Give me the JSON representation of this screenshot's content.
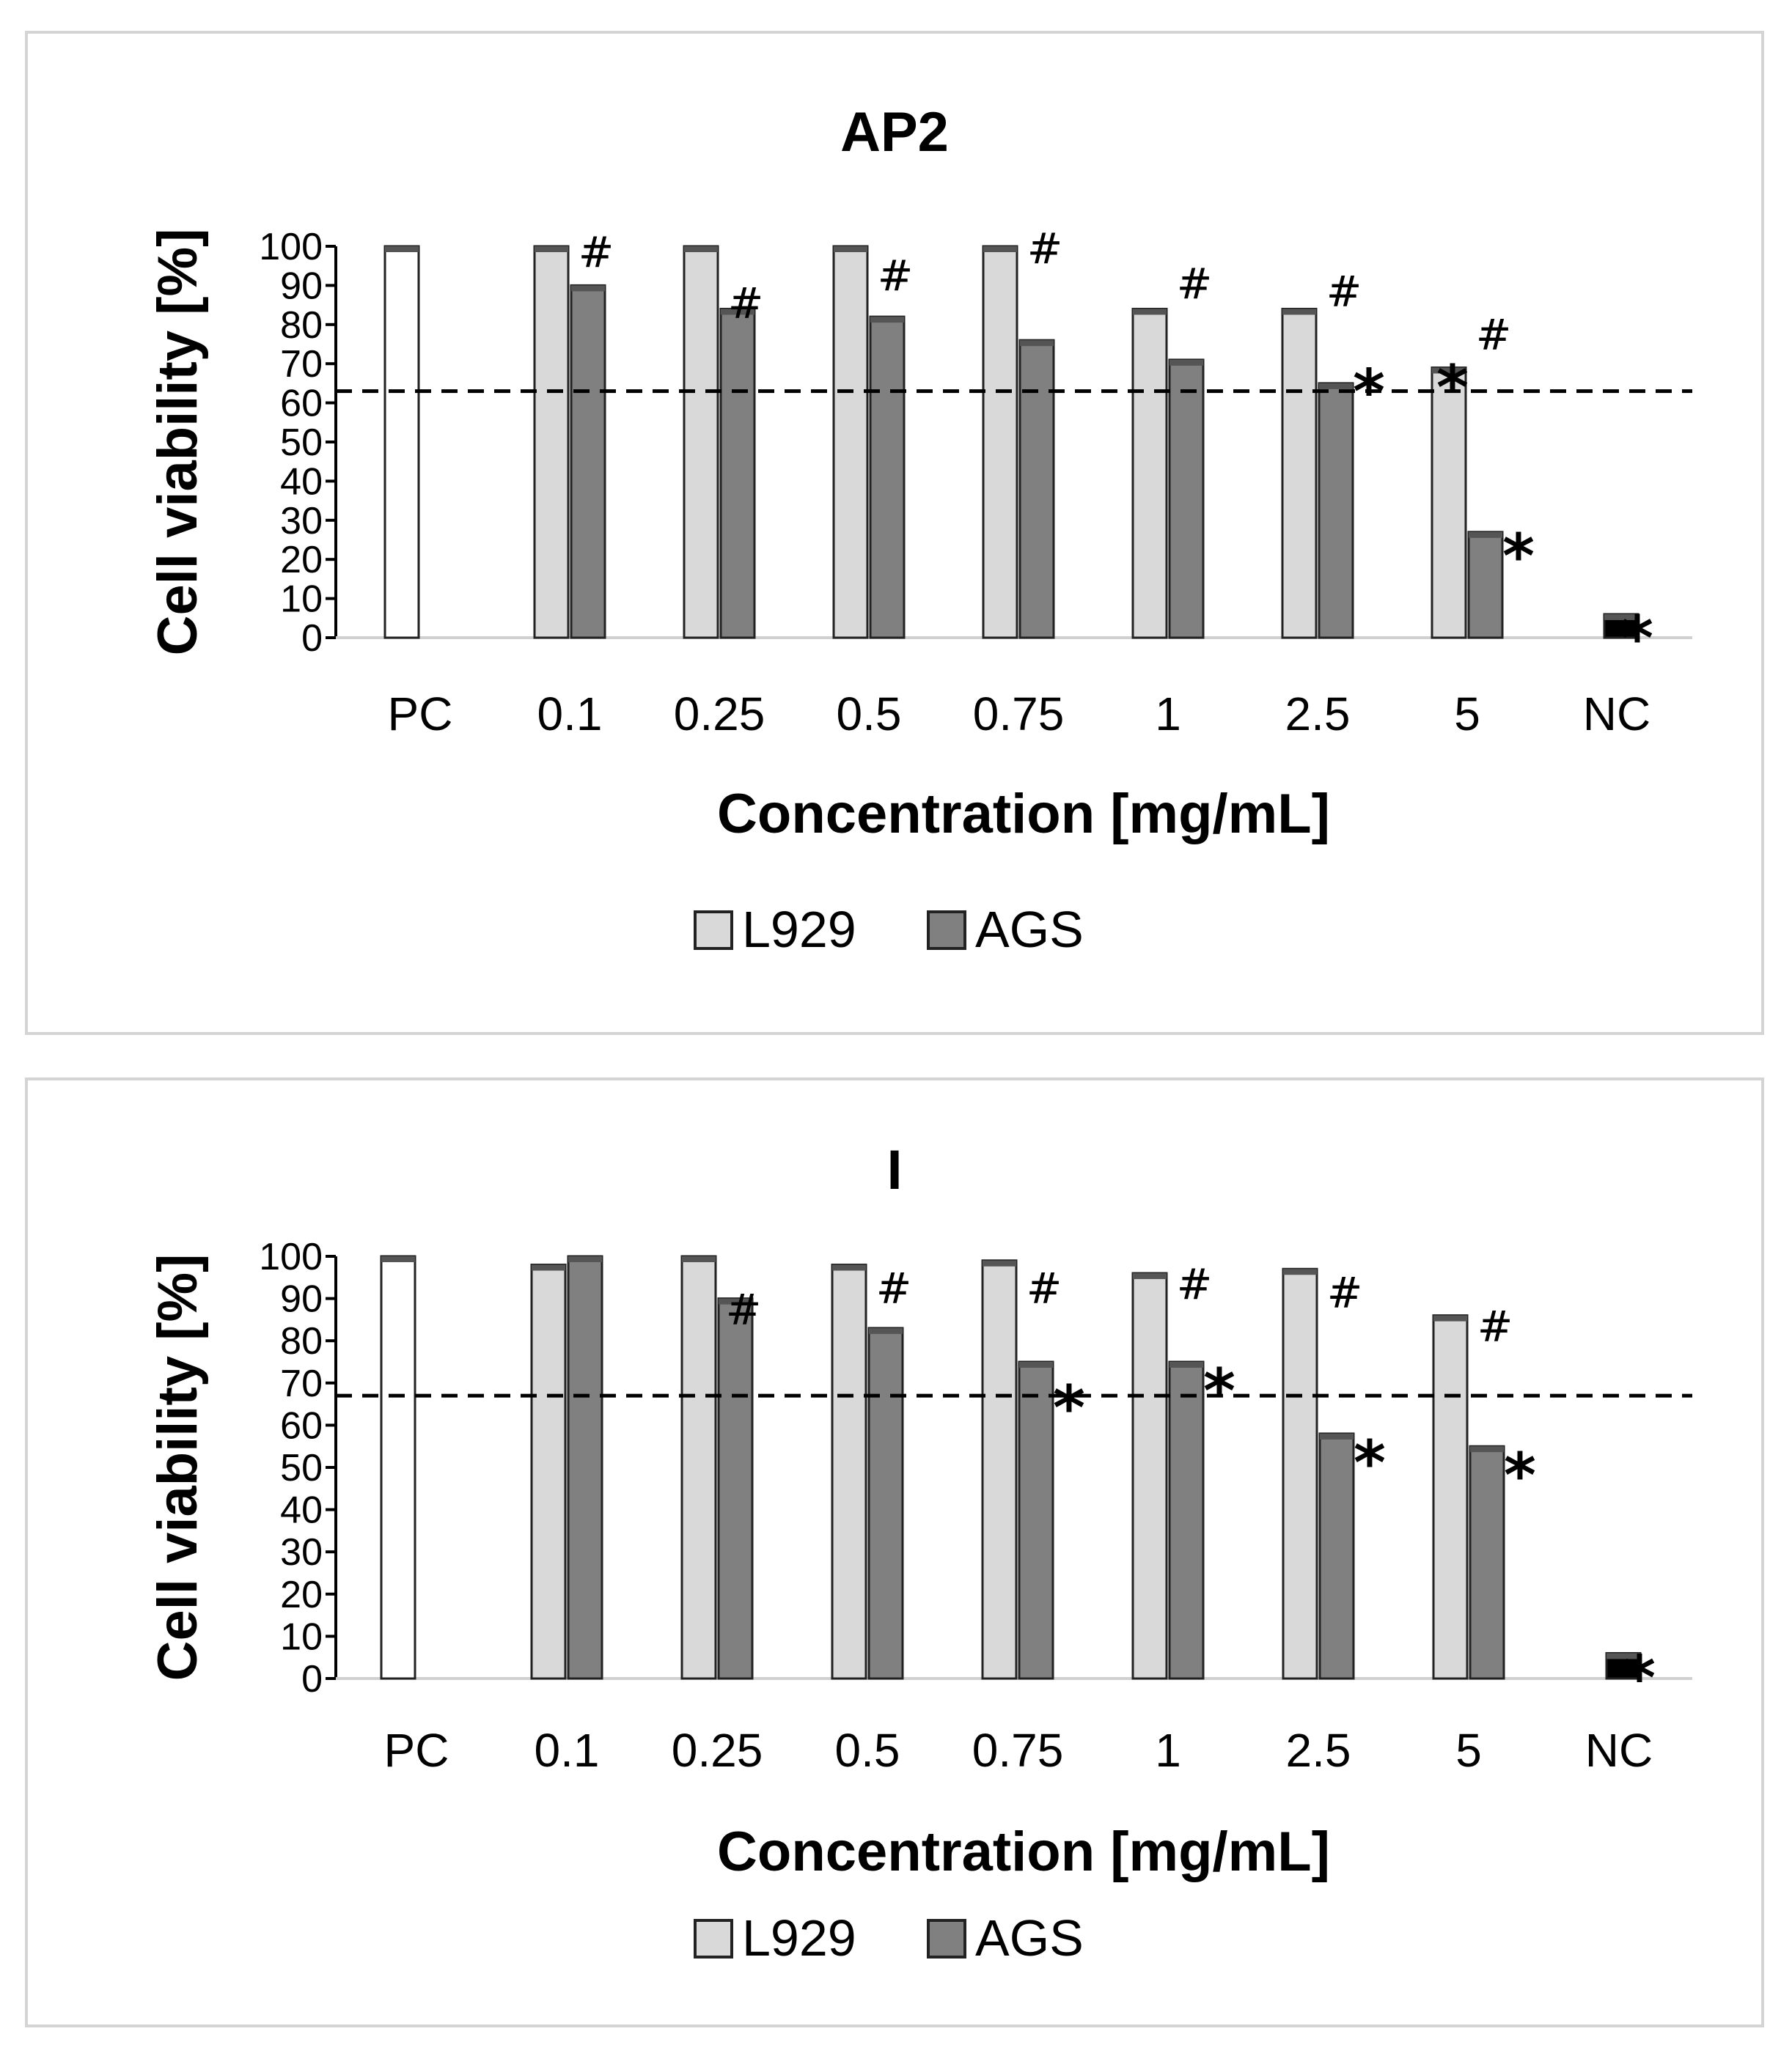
{
  "chart_data": [
    {
      "type": "bar",
      "title": "AP2",
      "xlabel": "Concentration [mg/mL]",
      "ylabel": "Cell viability [%]",
      "ylim": [
        0,
        100
      ],
      "yticks": [
        "0",
        "10",
        "20",
        "30",
        "40",
        "50",
        "60",
        "70",
        "80",
        "90",
        "100"
      ],
      "categories": [
        "PC",
        "0.1",
        "0.25",
        "0.5",
        "0.75",
        "1",
        "2.5",
        "5",
        "NC"
      ],
      "threshold": 63,
      "series": [
        {
          "name": "L929",
          "color": "#d9d9d9",
          "values": [
            null,
            100,
            100,
            100,
            100,
            84,
            84,
            69,
            null
          ]
        },
        {
          "name": "AGS",
          "color": "#808080",
          "values": [
            null,
            90,
            84,
            82,
            76,
            71,
            65,
            27,
            null
          ]
        }
      ],
      "pc": {
        "value": 100,
        "color": "#ffffff"
      },
      "nc": {
        "value": 6,
        "color": "#000000"
      },
      "marks": [
        {
          "category": "0.1",
          "symbol": "#",
          "value": 98
        },
        {
          "category": "0.25",
          "symbol": "#",
          "value": 85
        },
        {
          "category": "0.5",
          "symbol": "#",
          "value": 92
        },
        {
          "category": "0.75",
          "symbol": "#",
          "value": 99
        },
        {
          "category": "1",
          "symbol": "#",
          "value": 90
        },
        {
          "category": "2.5",
          "symbol": "#",
          "value": 88
        },
        {
          "category": "2.5",
          "symbol": "*",
          "value": 66,
          "side": "ags"
        },
        {
          "category": "5",
          "symbol": "*",
          "value": 67,
          "side": "l929"
        },
        {
          "category": "5",
          "symbol": "#",
          "value": 77
        },
        {
          "category": "5",
          "symbol": "*",
          "value": 24,
          "side": "ags"
        },
        {
          "category": "NC",
          "symbol": "*",
          "value": 3,
          "side": "nc"
        }
      ]
    },
    {
      "type": "bar",
      "title": "I",
      "xlabel": "Concentration [mg/mL]",
      "ylabel": "Cell viability [%]",
      "ylim": [
        0,
        100
      ],
      "yticks": [
        "0",
        "10",
        "20",
        "30",
        "40",
        "50",
        "60",
        "70",
        "80",
        "90",
        "100"
      ],
      "categories": [
        "PC",
        "0.1",
        "0.25",
        "0.5",
        "0.75",
        "1",
        "2.5",
        "5",
        "NC"
      ],
      "threshold": 67,
      "series": [
        {
          "name": "L929",
          "color": "#d9d9d9",
          "values": [
            null,
            98,
            100,
            98,
            99,
            96,
            97,
            86,
            null
          ]
        },
        {
          "name": "AGS",
          "color": "#808080",
          "values": [
            null,
            100,
            90,
            83,
            75,
            75,
            58,
            55,
            null
          ]
        }
      ],
      "pc": {
        "value": 100,
        "color": "#ffffff"
      },
      "nc": {
        "value": 6,
        "color": "#000000"
      },
      "marks": [
        {
          "category": "0.25",
          "symbol": "#",
          "value": 87
        },
        {
          "category": "0.5",
          "symbol": "#",
          "value": 92
        },
        {
          "category": "0.75",
          "symbol": "#",
          "value": 92
        },
        {
          "category": "0.75",
          "symbol": "*",
          "value": 67,
          "side": "ags"
        },
        {
          "category": "1",
          "symbol": "#",
          "value": 93
        },
        {
          "category": "1",
          "symbol": "*",
          "value": 71,
          "side": "ags"
        },
        {
          "category": "2.5",
          "symbol": "#",
          "value": 91
        },
        {
          "category": "2.5",
          "symbol": "*",
          "value": 54,
          "side": "ags"
        },
        {
          "category": "5",
          "symbol": "#",
          "value": 83
        },
        {
          "category": "5",
          "symbol": "*",
          "value": 51,
          "side": "ags"
        },
        {
          "category": "NC",
          "symbol": "*",
          "value": 3,
          "side": "nc"
        }
      ]
    }
  ]
}
